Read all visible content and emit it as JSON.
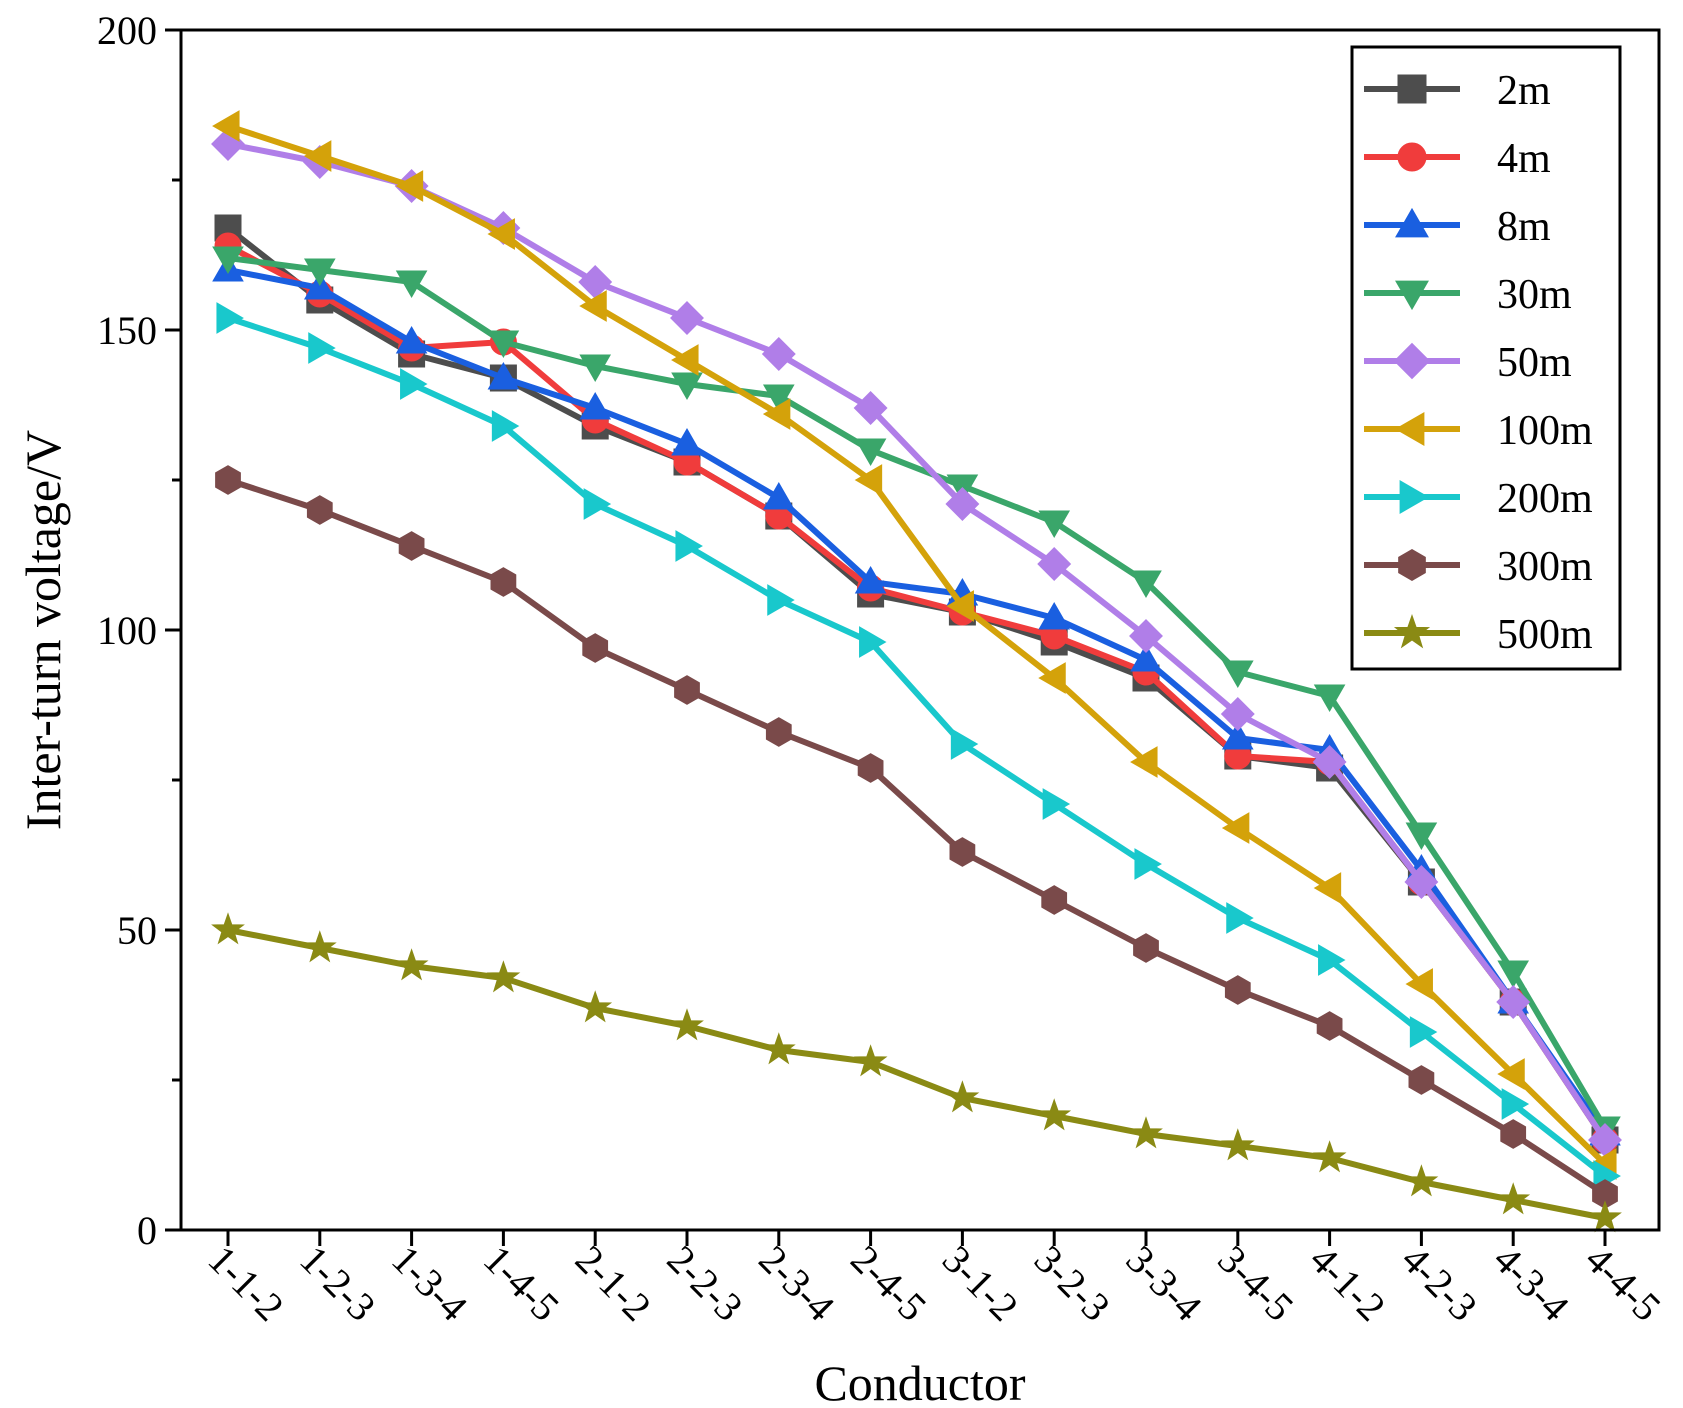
{
  "chart_data": {
    "type": "line",
    "title": "",
    "xlabel": "Conductor",
    "ylabel": "Inter-turn voltage/V",
    "ylim": [
      0,
      200
    ],
    "yticks": [
      0,
      50,
      100,
      150,
      200
    ],
    "grid": false,
    "legend_position": "top-right",
    "categories": [
      "1-1-2",
      "1-2-3",
      "1-3-4",
      "1-4-5",
      "2-1-2",
      "2-2-3",
      "2-3-4",
      "2-4-5",
      "3-1-2",
      "3-2-3",
      "3-3-4",
      "3-4-5",
      "4-1-2",
      "4-2-3",
      "4-3-4",
      "4-4-5"
    ],
    "series": [
      {
        "name": "2m",
        "color": "#4d4d4d",
        "marker": "square",
        "values": [
          167,
          155,
          146,
          142,
          134,
          128,
          119,
          106,
          103,
          98,
          92,
          79,
          77,
          58,
          38,
          15
        ]
      },
      {
        "name": "4m",
        "color": "#f03c3c",
        "marker": "circle",
        "values": [
          164,
          156,
          147,
          148,
          135,
          128,
          119,
          107,
          103,
          99,
          93,
          79,
          78,
          58,
          38,
          15
        ]
      },
      {
        "name": "8m",
        "color": "#1a5fe0",
        "marker": "triangle-up",
        "values": [
          160,
          157,
          148,
          142,
          137,
          131,
          122,
          108,
          106,
          102,
          95,
          82,
          80,
          60,
          38,
          16
        ]
      },
      {
        "name": "30m",
        "color": "#3aa66a",
        "marker": "triangle-down",
        "values": [
          162,
          160,
          158,
          148,
          144,
          141,
          139,
          130,
          124,
          118,
          108,
          93,
          89,
          66,
          43,
          17
        ]
      },
      {
        "name": "50m",
        "color": "#b07ee8",
        "marker": "diamond",
        "values": [
          181,
          178,
          174,
          167,
          158,
          152,
          146,
          137,
          121,
          111,
          99,
          86,
          78,
          58,
          38,
          15
        ]
      },
      {
        "name": "100m",
        "color": "#d4a20a",
        "marker": "triangle-left",
        "values": [
          184,
          179,
          174,
          166,
          154,
          145,
          136,
          125,
          104,
          92,
          78,
          67,
          57,
          41,
          26,
          11
        ]
      },
      {
        "name": "200m",
        "color": "#19c8cc",
        "marker": "triangle-right",
        "values": [
          152,
          147,
          141,
          134,
          121,
          114,
          105,
          98,
          81,
          71,
          61,
          52,
          45,
          33,
          21,
          9
        ]
      },
      {
        "name": "300m",
        "color": "#7a4a4a",
        "marker": "hexagon",
        "values": [
          125,
          120,
          114,
          108,
          97,
          90,
          83,
          77,
          63,
          55,
          47,
          40,
          34,
          25,
          16,
          6
        ]
      },
      {
        "name": "500m",
        "color": "#8a8a14",
        "marker": "star",
        "values": [
          50,
          47,
          44,
          42,
          37,
          34,
          30,
          28,
          22,
          19,
          16,
          14,
          12,
          8,
          5,
          2
        ]
      }
    ]
  }
}
